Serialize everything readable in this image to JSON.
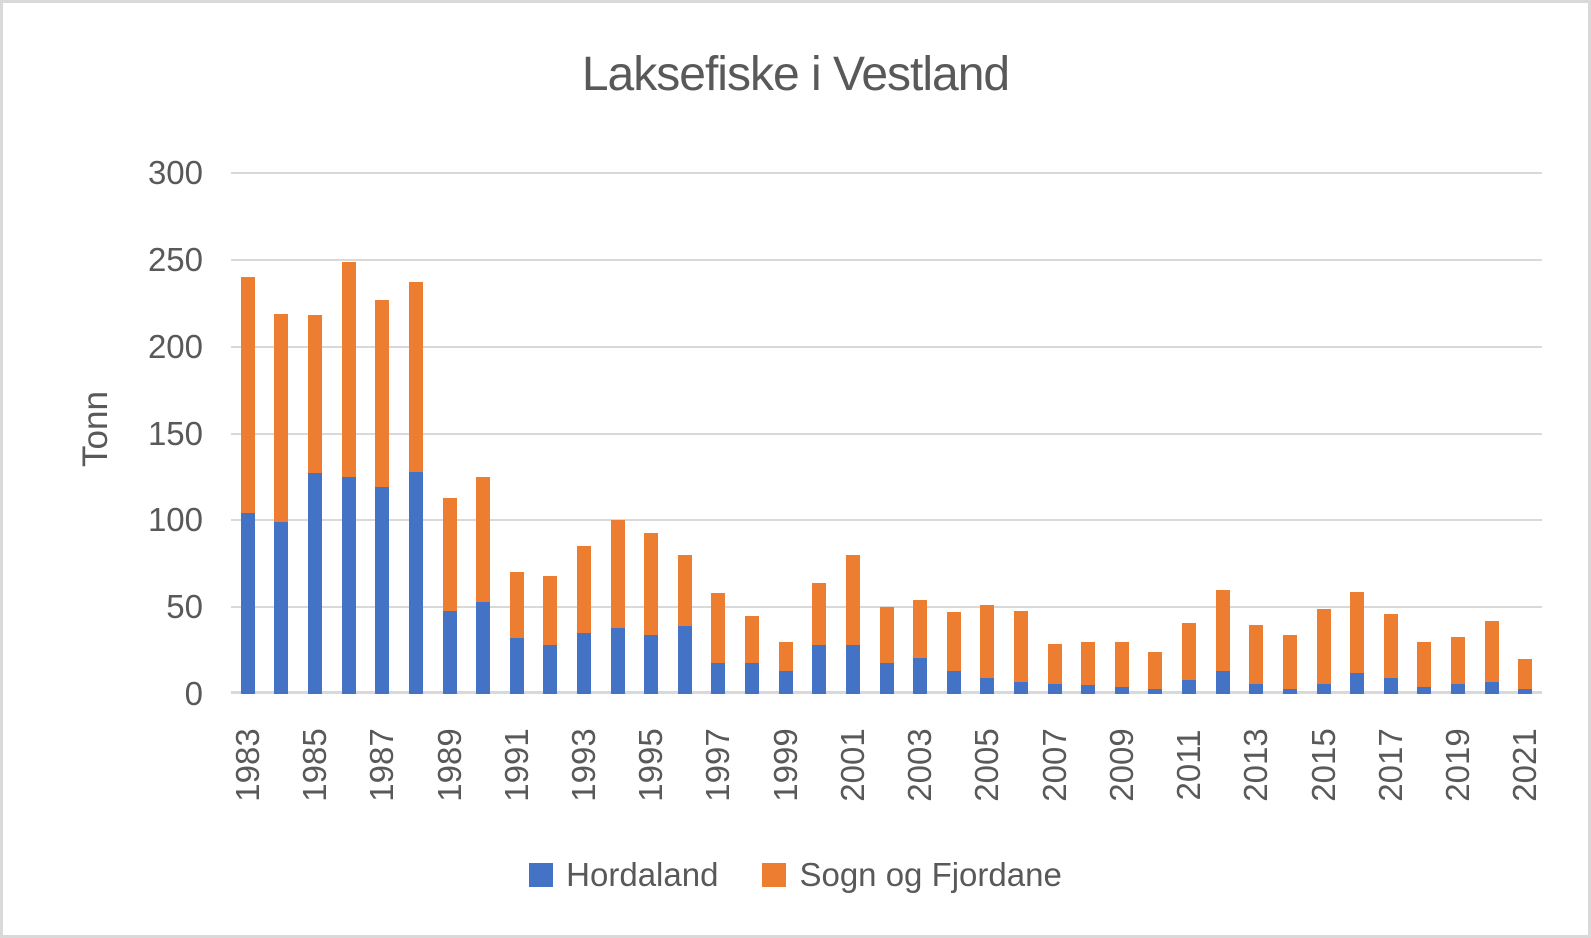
{
  "chart_data": {
    "type": "bar",
    "stacked": true,
    "title": "Laksefiske i Vestland",
    "ylabel": "Tonn",
    "xlabel": "",
    "ylim": [
      0,
      300
    ],
    "ytick_step": 50,
    "yticks": [
      0,
      50,
      100,
      150,
      200,
      250,
      300
    ],
    "grid": "horizontal",
    "legend_position": "bottom",
    "categories": [
      "1983",
      "1984",
      "1985",
      "1986",
      "1987",
      "1988",
      "1989",
      "1990",
      "1991",
      "1992",
      "1993",
      "1994",
      "1995",
      "1996",
      "1997",
      "1998",
      "1999",
      "2000",
      "2001",
      "2002",
      "2003",
      "2004",
      "2005",
      "2006",
      "2007",
      "2008",
      "2009",
      "2010",
      "2011",
      "2012",
      "2013",
      "2014",
      "2015",
      "2016",
      "2017",
      "2018",
      "2019",
      "2020",
      "2021"
    ],
    "x_tick_labels": [
      "1983",
      "1985",
      "1987",
      "1989",
      "1991",
      "1993",
      "1995",
      "1997",
      "1999",
      "2001",
      "2003",
      "2005",
      "2007",
      "2009",
      "2011",
      "2013",
      "2015",
      "2017",
      "2019",
      "2021"
    ],
    "series": [
      {
        "name": "Hordaland",
        "color": "#4472C4",
        "values": [
          104,
          99,
          127,
          125,
          119,
          128,
          48,
          53,
          32,
          28,
          35,
          38,
          34,
          39,
          18,
          18,
          13,
          28,
          28,
          18,
          21,
          13,
          9,
          7,
          6,
          5,
          4,
          3,
          8,
          13,
          6,
          3,
          6,
          12,
          9,
          4,
          6,
          7,
          3
        ]
      },
      {
        "name": "Sogn og Fjordane",
        "color": "#ED7D31",
        "values": [
          136,
          120,
          91,
          124,
          108,
          109,
          65,
          72,
          38,
          40,
          50,
          62,
          59,
          41,
          40,
          27,
          17,
          36,
          52,
          32,
          33,
          34,
          42,
          41,
          23,
          25,
          26,
          21,
          33,
          47,
          34,
          31,
          43,
          47,
          37,
          26,
          27,
          35,
          17
        ]
      }
    ]
  },
  "colors": {
    "text": "#595959",
    "gridline": "#D9D9D9",
    "background": "#FFFFFF",
    "frame_border": "#D9D9D9",
    "hordaland": "#4472C4",
    "sogn_og_fjordane": "#ED7D31"
  }
}
